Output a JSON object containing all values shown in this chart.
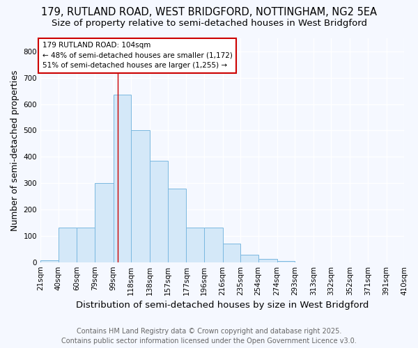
{
  "title1": "179, RUTLAND ROAD, WEST BRIDGFORD, NOTTINGHAM, NG2 5EA",
  "title2": "Size of property relative to semi-detached houses in West Bridgford",
  "xlabel": "Distribution of semi-detached houses by size in West Bridgford",
  "ylabel": "Number of semi-detached properties",
  "bin_labels": [
    "21sqm",
    "40sqm",
    "60sqm",
    "79sqm",
    "99sqm",
    "118sqm",
    "138sqm",
    "157sqm",
    "177sqm",
    "196sqm",
    "216sqm",
    "235sqm",
    "254sqm",
    "274sqm",
    "293sqm",
    "313sqm",
    "332sqm",
    "352sqm",
    "371sqm",
    "391sqm",
    "410sqm"
  ],
  "bin_edges": [
    21,
    40,
    60,
    79,
    99,
    118,
    138,
    157,
    177,
    196,
    216,
    235,
    254,
    274,
    293,
    313,
    332,
    352,
    371,
    391,
    410
  ],
  "bar_heights": [
    8,
    130,
    130,
    300,
    635,
    500,
    385,
    280,
    130,
    130,
    70,
    28,
    12,
    5,
    0,
    0,
    0,
    0,
    0,
    0
  ],
  "bar_color": "#d4e8f8",
  "bar_edge_color": "#7ab8e0",
  "red_line_x": 104,
  "annotation_title": "179 RUTLAND ROAD: 104sqm",
  "annotation_line1": "← 48% of semi-detached houses are smaller (1,172)",
  "annotation_line2": "51% of semi-detached houses are larger (1,255) →",
  "annotation_box_color": "#ffffff",
  "annotation_box_edge": "#cc0000",
  "red_line_color": "#cc0000",
  "ylim": [
    0,
    850
  ],
  "yticks": [
    0,
    100,
    200,
    300,
    400,
    500,
    600,
    700,
    800
  ],
  "footer1": "Contains HM Land Registry data © Crown copyright and database right 2025.",
  "footer2": "Contains public sector information licensed under the Open Government Licence v3.0.",
  "bg_color": "#f5f8ff",
  "plot_bg_color": "#f5f8ff",
  "grid_color": "#ffffff",
  "title1_fontsize": 10.5,
  "title2_fontsize": 9.5,
  "axis_label_fontsize": 9,
  "tick_fontsize": 7.5,
  "footer_fontsize": 7,
  "annotation_fontsize": 7.5
}
